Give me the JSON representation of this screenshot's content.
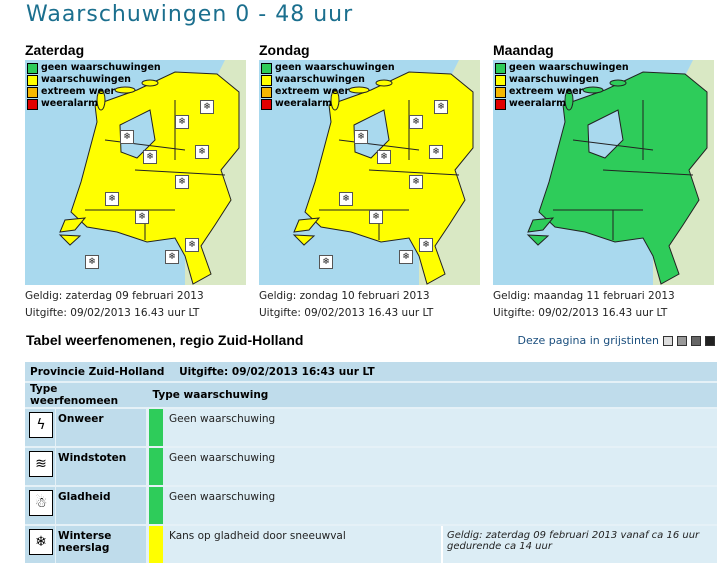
{
  "title": "Waarschuwingen 0 - 48 uur",
  "legend": [
    {
      "label": "geen waarschuwingen",
      "color": "#2ecc5a"
    },
    {
      "label": "waarschuwingen",
      "color": "#ffff00"
    },
    {
      "label": "extreem weer",
      "color": "#f5b800"
    },
    {
      "label": "weeralarm",
      "color": "#e00000"
    }
  ],
  "days": [
    {
      "name": "Zaterdag",
      "status": "waarschuwingen",
      "fill": "#ffff00",
      "snow_icons": true,
      "geldig_label": "Geldig:",
      "geldig": "zaterdag 09 februari 2013",
      "uitgifte_label": "Uitgifte:",
      "uitgifte": "09/02/2013 16.43 uur LT"
    },
    {
      "name": "Zondag",
      "status": "waarschuwingen",
      "fill": "#ffff00",
      "snow_icons": true,
      "geldig_label": "Geldig:",
      "geldig": "zondag 10 februari 2013",
      "uitgifte_label": "Uitgifte:",
      "uitgifte": "09/02/2013 16.43 uur LT"
    },
    {
      "name": "Maandag",
      "status": "geen waarschuwingen",
      "fill": "#2ecc5a",
      "snow_icons": false,
      "geldig_label": "Geldig:",
      "geldig": "maandag 11 februari 2013",
      "uitgifte_label": "Uitgifte:",
      "uitgifte": "09/02/2013 16.43 uur LT"
    }
  ],
  "section_title": "Tabel weerfenomenen, regio Zuid-Holland",
  "grayscale_link": "Deze pagina in grijstinten",
  "table": {
    "province": "Provincie Zuid-Holland",
    "uitgifte": "Uitgifte: 09/02/2013 16:43 uur LT",
    "col1": "Type weerfenomeen",
    "col2": "Type waarschuwing",
    "rows": [
      {
        "icon": "lightning-icon",
        "glyph": "ϟ",
        "name": "Onweer",
        "color": "#2ecc5a",
        "warning": "Geen waarschuwing",
        "valid": ""
      },
      {
        "icon": "windsock-icon",
        "glyph": "≋",
        "name": "Windstoten",
        "color": "#2ecc5a",
        "warning": "Geen waarschuwing",
        "valid": ""
      },
      {
        "icon": "slippery-icon",
        "glyph": "☃",
        "name": "Gladheid",
        "color": "#2ecc5a",
        "warning": "Geen waarschuwing",
        "valid": ""
      },
      {
        "icon": "snowflake-icon",
        "glyph": "❄",
        "name": "Winterse neerslag",
        "color": "#ffff00",
        "warning": "Kans op gladheid door sneeuwval",
        "valid": "Geldig: zaterdag 09 februari 2013 vanaf ca 16 uur gedurende ca 14 uur"
      }
    ]
  }
}
